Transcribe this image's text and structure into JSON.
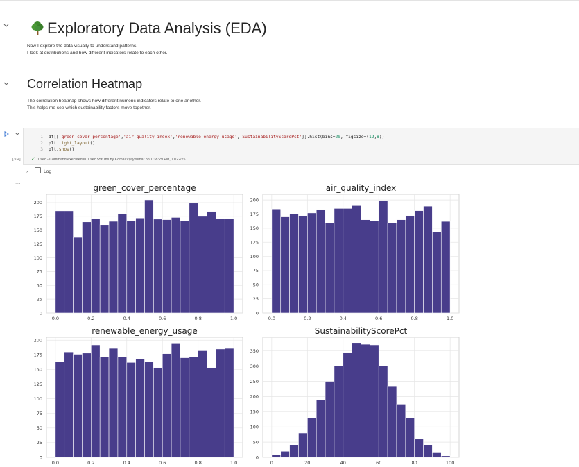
{
  "markdown_cell_1": {
    "title": "Exploratory Data Analysis (EDA)",
    "title_icon": "tree-icon",
    "line1": "Now I explore the data visually to understand patterns.",
    "line2": "I look at distributions and how different indicators relate to each other."
  },
  "markdown_cell_2": {
    "title": "Correlation Heatmap",
    "line1": "The correlation heatmap shows how different numeric indicators relate to one another.",
    "line2": "This helps me see which sustainability factors move together."
  },
  "code_cell": {
    "execution_count": "[304]",
    "line_numbers": [
      "1",
      "2",
      "3"
    ],
    "line1": {
      "p1": "df[[",
      "s1": "'green_cover_percentage'",
      "c1": ",",
      "s2": "'air_quality_index'",
      "c2": ",",
      "s3": "'renewable_energy_usage'",
      "c3": ",",
      "s4": "'SustainabilityScorePct'",
      "p2": "]].hist(bins=",
      "n1": "20",
      "p3": ", figsize=(",
      "n2": "12",
      "c4": ",",
      "n3": "8",
      "p4": "))"
    },
    "line2": {
      "obj": "plt.",
      "fn": "tight_layout",
      "end": "()"
    },
    "line3": {
      "obj": "plt.",
      "fn": "show",
      "end": "()"
    },
    "status": "1 sec - Command executed in 1 sec 556 ms by Komal Vijaykumar on 1:38:29 PM, 11/22/25"
  },
  "output": {
    "log_label": "Log",
    "more": "..."
  },
  "colors": {
    "bar": "#483d8b",
    "grid": "#e6e6e6",
    "frame": "#cccccc",
    "run": "#2f6fd1",
    "check": "#2e8b3a"
  },
  "chart_data": [
    {
      "type": "bar",
      "title": "green_cover_percentage",
      "x_range": [
        0,
        1
      ],
      "bins": 20,
      "values": [
        185,
        185,
        137,
        165,
        171,
        160,
        166,
        180,
        167,
        172,
        205,
        170,
        169,
        173,
        167,
        199,
        175,
        184,
        171,
        171
      ],
      "ylim": [
        0,
        215
      ],
      "yticks": [
        "0",
        "25",
        "50",
        "75",
        "100",
        "125",
        "150",
        "175",
        "200"
      ],
      "xticks": [
        "0.0",
        "0.2",
        "0.4",
        "0.6",
        "0.8",
        "1.0"
      ],
      "grid": true
    },
    {
      "type": "bar",
      "title": "air_quality_index",
      "x_range": [
        0,
        1
      ],
      "bins": 20,
      "values": [
        184,
        170,
        176,
        172,
        177,
        183,
        159,
        185,
        185,
        190,
        165,
        163,
        199,
        159,
        165,
        172,
        181,
        189,
        143,
        162
      ],
      "ylim": [
        0,
        210
      ],
      "yticks": [
        "0",
        "25",
        "50",
        "75",
        "100",
        "125",
        "150",
        "175",
        "200"
      ],
      "xticks": [
        "0.0",
        "0.2",
        "0.4",
        "0.6",
        "0.8",
        "1.0"
      ],
      "grid": true
    },
    {
      "type": "bar",
      "title": "renewable_energy_usage",
      "x_range": [
        0,
        1
      ],
      "bins": 20,
      "values": [
        163,
        180,
        176,
        178,
        192,
        171,
        186,
        171,
        162,
        168,
        163,
        153,
        177,
        194,
        170,
        171,
        182,
        153,
        185,
        186
      ],
      "ylim": [
        0,
        205
      ],
      "yticks": [
        "0",
        "25",
        "50",
        "75",
        "100",
        "125",
        "150",
        "175",
        "200"
      ],
      "xticks": [
        "0.0",
        "0.2",
        "0.4",
        "0.6",
        "0.8",
        "1.0"
      ],
      "grid": true
    },
    {
      "type": "bar",
      "title": "SustainabilityScorePct",
      "x_range": [
        0,
        100
      ],
      "bins": 20,
      "values": [
        8,
        20,
        40,
        80,
        130,
        190,
        250,
        300,
        345,
        375,
        372,
        370,
        300,
        235,
        175,
        130,
        60,
        40,
        15,
        5
      ],
      "ylim": [
        0,
        395
      ],
      "yticks": [
        "0",
        "50",
        "100",
        "150",
        "200",
        "250",
        "300",
        "350"
      ],
      "xticks": [
        "0",
        "20",
        "40",
        "60",
        "80",
        "100"
      ],
      "grid": true
    }
  ]
}
